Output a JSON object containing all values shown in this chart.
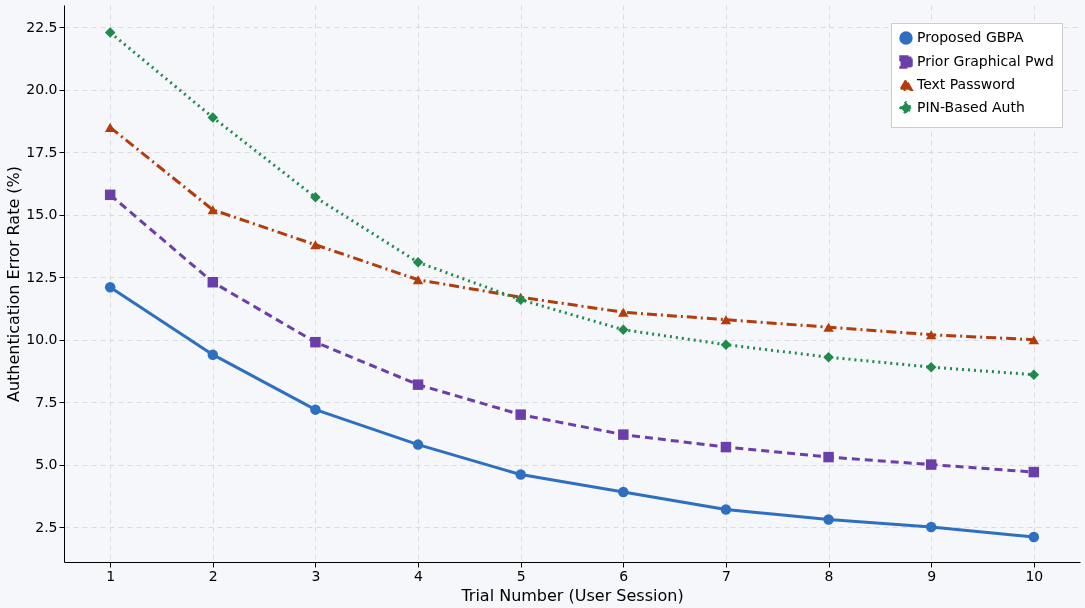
{
  "chart_data": {
    "type": "line",
    "xlabel": "Trial Number (User Session)",
    "ylabel": "Authentication Error Rate (%)",
    "x": [
      1,
      2,
      3,
      4,
      5,
      6,
      7,
      8,
      9,
      10
    ],
    "series": [
      {
        "name": "Proposed GBPA",
        "color": "#2f6fbf",
        "marker": "circle",
        "line_style": "solid",
        "values": [
          12.1,
          9.4,
          7.2,
          5.8,
          4.6,
          3.9,
          3.2,
          2.8,
          2.5,
          2.1
        ]
      },
      {
        "name": "Prior Graphical Pwd",
        "color": "#6a3fa8",
        "marker": "square",
        "line_style": "dashed",
        "values": [
          15.8,
          12.3,
          9.9,
          8.2,
          7.0,
          6.2,
          5.7,
          5.3,
          5.0,
          4.7
        ]
      },
      {
        "name": "Text Password",
        "color": "#b23c0a",
        "marker": "triangle",
        "line_style": "dashdot",
        "values": [
          18.5,
          15.2,
          13.8,
          12.4,
          11.7,
          11.1,
          10.8,
          10.5,
          10.2,
          10.0
        ]
      },
      {
        "name": "PIN-Based Auth",
        "color": "#1f8a4c",
        "marker": "diamond",
        "line_style": "dotted",
        "values": [
          22.3,
          18.9,
          15.7,
          13.1,
          11.6,
          10.4,
          9.8,
          9.3,
          8.9,
          8.6
        ]
      }
    ],
    "xlim": [
      0.55,
      10.45
    ],
    "xticks": [
      1,
      2,
      3,
      4,
      5,
      6,
      7,
      8,
      9,
      10
    ],
    "ylim": [
      1.1,
      23.4
    ],
    "yticks": [
      2.5,
      {
        "value": 5,
        "label": "5.0"
      },
      7.5,
      {
        "value": 10,
        "label": "10.0"
      },
      12.5,
      {
        "value": 15,
        "label": "15.0"
      },
      17.5,
      {
        "value": 20,
        "label": "20.0"
      },
      22.5
    ],
    "grid": true,
    "legend": "top right"
  }
}
